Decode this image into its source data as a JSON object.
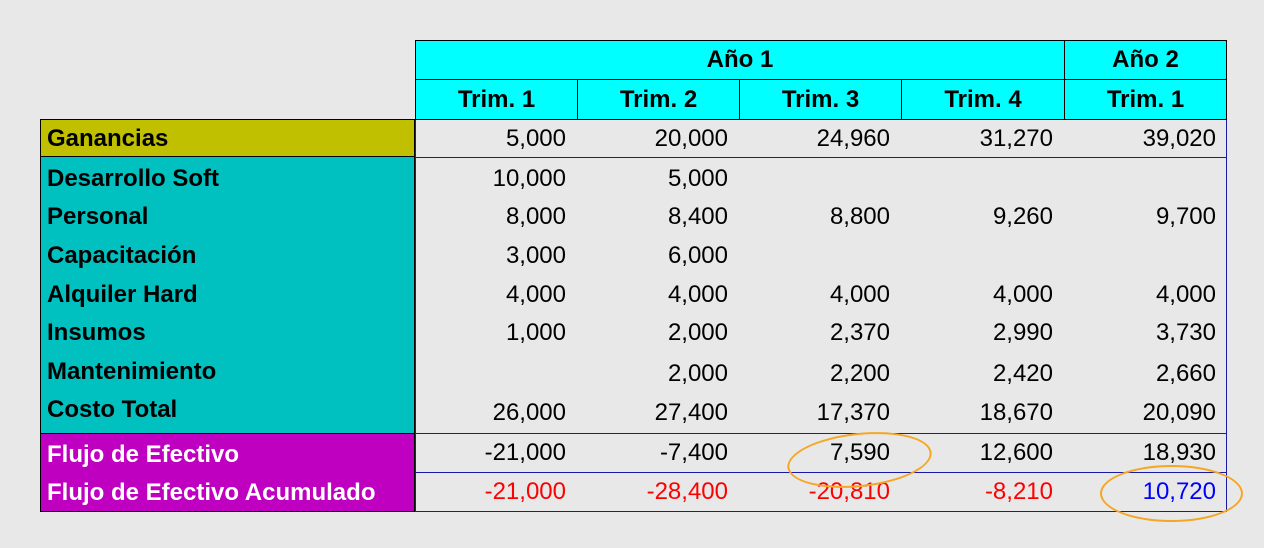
{
  "header": {
    "year1": "Año 1",
    "year2": "Año 2",
    "quarters": [
      "Trim. 1",
      "Trim. 2",
      "Trim. 3",
      "Trim. 4",
      "Trim. 1"
    ]
  },
  "rows": {
    "ganancias": {
      "label": "Ganancias",
      "values": [
        "5,000",
        "20,000",
        "24,960",
        "31,270",
        "39,020"
      ]
    },
    "desarrollo": {
      "label": "Desarrollo Soft",
      "values": [
        "10,000",
        "5,000",
        "",
        "",
        ""
      ]
    },
    "personal": {
      "label": "Personal",
      "values": [
        "8,000",
        "8,400",
        "8,800",
        "9,260",
        "9,700"
      ]
    },
    "capacitacion": {
      "label": "Capacitación",
      "values": [
        "3,000",
        "6,000",
        "",
        "",
        ""
      ]
    },
    "alquiler": {
      "label": "Alquiler Hard",
      "values": [
        "4,000",
        "4,000",
        "4,000",
        "4,000",
        "4,000"
      ]
    },
    "insumos": {
      "label": "Insumos",
      "values": [
        "1,000",
        "2,000",
        "2,370",
        "2,990",
        "3,730"
      ]
    },
    "mantenimiento": {
      "label": "Mantenimiento",
      "values": [
        "",
        "2,000",
        "2,200",
        "2,420",
        "2,660"
      ]
    },
    "costo_total": {
      "label": "Costo Total",
      "values": [
        "26,000",
        "27,400",
        "17,370",
        "18,670",
        "20,090"
      ]
    },
    "flujo": {
      "label": "Flujo de Efectivo",
      "values": [
        "-21,000",
        "-7,400",
        "7,590",
        "12,600",
        "18,930"
      ]
    },
    "flujo_acum": {
      "label": "Flujo de Efectivo Acumulado",
      "values": [
        "-21,000",
        "-28,400",
        "-20,810",
        "-8,210",
        "10,720"
      ]
    }
  },
  "colors": {
    "header_bg": "#00ffff",
    "ganancias_bg": "#c0c000",
    "costs_bg": "#00c0c0",
    "flujo_bg": "#c000c0",
    "negative": "#ff0000",
    "positive_highlight": "#0000ff",
    "annotation_circle": "#f5a623"
  }
}
